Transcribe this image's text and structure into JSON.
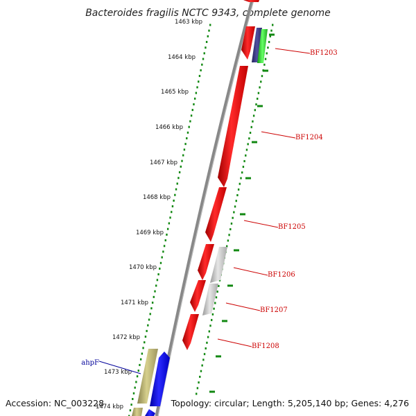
{
  "title": "Bacteroides fragilis NCTC 9343, complete genome",
  "footer": {
    "accession": "Accession: NC_003228",
    "topology": "Topology: circular; Length: 5,205,140 bp; Genes: 4,276"
  },
  "scale_labels": [
    "1463 kbp",
    "1464 kbp",
    "1465 kbp",
    "1466 kbp",
    "1467 kbp",
    "1468 kbp",
    "1469 kbp",
    "1470 kbp",
    "1471 kbp",
    "1472 kbp",
    "1473 kbp",
    "1474 kbp"
  ],
  "genes": [
    {
      "label": "BF1203",
      "color": "#cc0000"
    },
    {
      "label": "BF1204",
      "color": "#cc0000"
    },
    {
      "label": "BF1205",
      "color": "#cc0000"
    },
    {
      "label": "BF1206",
      "color": "#cc0000"
    },
    {
      "label": "BF1207",
      "color": "#cc0000"
    },
    {
      "label": "BF1208",
      "color": "#cc0000"
    },
    {
      "label": "ahpF",
      "color": "#000099"
    }
  ],
  "colors": {
    "backbone": "#888888",
    "feature_red": "#ff0000",
    "feature_grey": "#c8c8c8",
    "feature_khaki": "#bdb76b",
    "feature_blue": "#0000ff",
    "feature_navy": "#3c3c8c",
    "feature_green": "#33dd33",
    "tick_green": "#118811"
  }
}
